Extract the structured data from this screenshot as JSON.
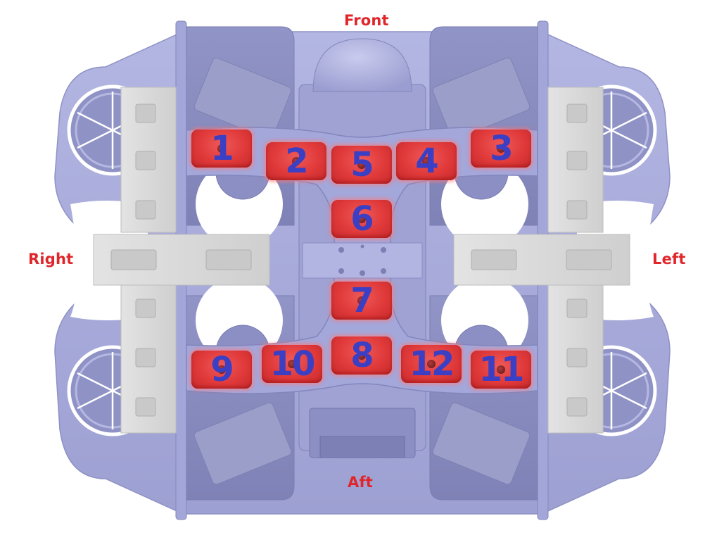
{
  "labels": {
    "front": "Front",
    "aft": "Aft",
    "right": "Right",
    "left": "Left"
  },
  "pads": [
    {
      "id": "1",
      "label": "1"
    },
    {
      "id": "2",
      "label": "2"
    },
    {
      "id": "5",
      "label": "5"
    },
    {
      "id": "4",
      "label": "4"
    },
    {
      "id": "3",
      "label": "3"
    },
    {
      "id": "6",
      "label": "6"
    },
    {
      "id": "7",
      "label": "7"
    },
    {
      "id": "9",
      "label": "9"
    },
    {
      "id": "10",
      "label": "10"
    },
    {
      "id": "8",
      "label": "8"
    },
    {
      "id": "12",
      "label": "12"
    },
    {
      "id": "11",
      "label": "11"
    }
  ],
  "colors": {
    "label": "#e0262b",
    "pad": "#e0393a",
    "number": "#3b3fc4",
    "frame": "#a9acd9",
    "gray_block": "#d8d8d8"
  }
}
